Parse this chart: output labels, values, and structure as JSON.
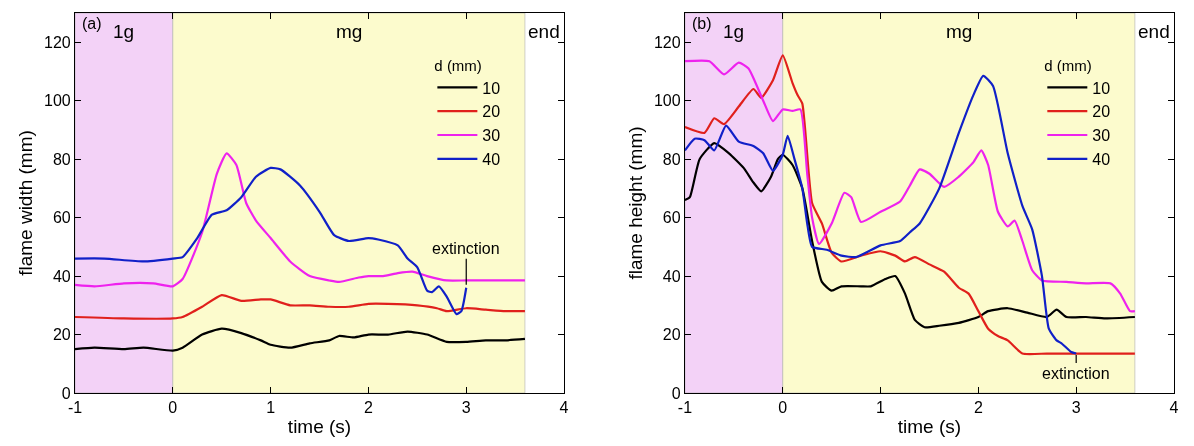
{
  "chart_data": [
    {
      "type": "line",
      "xlabel": "time (s)",
      "ylabel": "flame width (mm)",
      "legend_title": "d (mm)",
      "legend": "top right",
      "xlim": [
        -1,
        4
      ],
      "xticks": [
        -1,
        0,
        1,
        2,
        3,
        4
      ],
      "ylim": [
        0,
        130
      ],
      "yticks": [
        0,
        20,
        40,
        60,
        80,
        100,
        120
      ],
      "bands": [
        {
          "axis": "x",
          "from": -1,
          "to": 0,
          "label": "1g",
          "color": "#f3d2f7"
        },
        {
          "axis": "x",
          "from": 0,
          "to": 3.6,
          "label": "mg",
          "color": "#fcfbcd"
        }
      ],
      "annotations": [
        "(a)",
        "end",
        {
          "text": "extinction",
          "x": 3,
          "y": 37
        }
      ],
      "series": [
        {
          "name": "10",
          "color": "#000000",
          "x": [
            -1,
            -0.8,
            -0.5,
            -0.3,
            0,
            0.1,
            0.3,
            0.5,
            0.7,
            0.9,
            1.0,
            1.2,
            1.4,
            1.6,
            1.7,
            1.85,
            2.0,
            2.2,
            2.4,
            2.6,
            2.8,
            3.0,
            3.2,
            3.4,
            3.6
          ],
          "values": [
            15,
            15.5,
            15,
            15.5,
            14.5,
            15.5,
            20,
            22,
            20.5,
            18,
            16.5,
            15.5,
            17,
            18,
            19.5,
            19,
            20,
            20,
            21,
            20,
            17.5,
            17.5,
            18,
            18,
            18.5
          ]
        },
        {
          "name": "20",
          "color": "#e0201c",
          "x": [
            -1,
            -0.5,
            0,
            0.1,
            0.3,
            0.5,
            0.7,
            0.9,
            1.0,
            1.2,
            1.4,
            1.6,
            1.8,
            2.0,
            2.2,
            2.5,
            2.7,
            2.8,
            3.0,
            3.2,
            3.4,
            3.6
          ],
          "values": [
            26,
            25.5,
            25.5,
            26,
            29.5,
            33.5,
            31.5,
            32,
            32,
            30,
            30,
            29.5,
            29.5,
            30.5,
            30.5,
            30,
            29,
            28,
            29,
            28.5,
            28,
            28
          ]
        },
        {
          "name": "30",
          "color": "#ee22ee",
          "x": [
            -1,
            -0.8,
            -0.5,
            -0.2,
            0,
            0.1,
            0.3,
            0.45,
            0.55,
            0.65,
            0.75,
            0.85,
            1.0,
            1.2,
            1.4,
            1.6,
            1.7,
            1.9,
            2.0,
            2.15,
            2.3,
            2.45,
            2.6,
            2.8,
            3.0,
            3.2,
            3.6
          ],
          "values": [
            37,
            36.5,
            37.5,
            37.5,
            36.5,
            39,
            55,
            75,
            82,
            78,
            65,
            59,
            53,
            45,
            40,
            38.5,
            38,
            39.5,
            40,
            40,
            41,
            41.5,
            40,
            38.5,
            38.5,
            38.5,
            38.5
          ]
        },
        {
          "name": "40",
          "color": "#1020c8",
          "x": [
            -1,
            -0.7,
            -0.3,
            0,
            0.1,
            0.25,
            0.4,
            0.55,
            0.7,
            0.85,
            1.0,
            1.1,
            1.3,
            1.5,
            1.65,
            1.8,
            2.0,
            2.1,
            2.3,
            2.4,
            2.5,
            2.6,
            2.65,
            2.72,
            2.8,
            2.9,
            2.95,
            3.0
          ],
          "values": [
            46,
            46,
            45,
            46,
            46.5,
            53,
            61,
            62.5,
            67,
            74,
            77,
            76.5,
            71,
            62,
            54,
            52,
            53,
            52.5,
            50.5,
            46,
            43,
            35,
            34.5,
            36.5,
            33,
            27,
            28,
            36
          ]
        }
      ]
    },
    {
      "type": "line",
      "xlabel": "time (s)",
      "ylabel": "flame height (mm)",
      "legend_title": "d (mm)",
      "legend": "top right",
      "xlim": [
        -1,
        4
      ],
      "xticks": [
        -1,
        0,
        1,
        2,
        3,
        4
      ],
      "ylim": [
        0,
        130
      ],
      "yticks": [
        0,
        20,
        40,
        60,
        80,
        100,
        120
      ],
      "bands": [
        {
          "axis": "x",
          "from": -1,
          "to": 0,
          "label": "1g",
          "color": "#f3d2f7"
        },
        {
          "axis": "x",
          "from": 0,
          "to": 3.6,
          "label": "mg",
          "color": "#fcfbcd"
        }
      ],
      "annotations": [
        "(b)",
        "end",
        {
          "text": "extinction",
          "x": 3,
          "y": 13
        }
      ],
      "series": [
        {
          "name": "10",
          "color": "#000000",
          "x": [
            -1,
            -0.95,
            -0.85,
            -0.7,
            -0.55,
            -0.4,
            -0.3,
            -0.22,
            -0.12,
            -0.05,
            0,
            0.1,
            0.2,
            0.3,
            0.4,
            0.5,
            0.6,
            0.8,
            0.9,
            1.05,
            1.15,
            1.25,
            1.35,
            1.45,
            1.6,
            1.8,
            2.0,
            2.1,
            2.3,
            2.5,
            2.7,
            2.8,
            2.9,
            3.1,
            3.3,
            3.6
          ],
          "values": [
            66,
            67,
            80,
            85.5,
            82,
            77,
            72,
            69,
            74,
            80,
            81.5,
            78,
            70,
            52,
            38,
            35,
            36.5,
            36.5,
            36.5,
            39,
            40,
            34,
            25,
            22.5,
            23,
            24,
            26,
            28,
            29,
            27.5,
            26,
            28.5,
            26,
            26,
            25.5,
            26
          ]
        },
        {
          "name": "20",
          "color": "#e0201c",
          "x": [
            -1,
            -0.8,
            -0.7,
            -0.6,
            -0.45,
            -0.3,
            -0.22,
            -0.1,
            0,
            0.1,
            0.15,
            0.2,
            0.3,
            0.4,
            0.5,
            0.6,
            0.8,
            1.0,
            1.15,
            1.25,
            1.35,
            1.5,
            1.65,
            1.8,
            1.9,
            2.0,
            2.1,
            2.2,
            2.3,
            2.45,
            2.7,
            3.0,
            3.6
          ],
          "values": [
            91,
            89,
            94,
            92,
            98,
            104,
            101,
            107,
            115.5,
            106,
            102,
            99,
            65,
            58,
            48,
            45,
            47,
            48.5,
            47,
            45,
            46.5,
            44,
            41.5,
            36,
            34,
            28,
            22,
            19.5,
            18,
            13.5,
            13.5,
            13.5,
            13.5
          ]
        },
        {
          "name": "30",
          "color": "#ee22ee",
          "x": [
            -1,
            -0.75,
            -0.6,
            -0.45,
            -0.35,
            -0.2,
            -0.1,
            0,
            0.1,
            0.18,
            0.25,
            0.3,
            0.37,
            0.5,
            0.63,
            0.7,
            0.8,
            1.0,
            1.2,
            1.3,
            1.4,
            1.5,
            1.65,
            1.8,
            1.95,
            2.03,
            2.1,
            2.2,
            2.3,
            2.37,
            2.45,
            2.55,
            2.65,
            2.9,
            3.1,
            3.35,
            3.45,
            3.55,
            3.6
          ],
          "values": [
            113.5,
            113.5,
            109,
            113,
            111,
            100,
            93,
            97,
            96.5,
            97,
            75,
            60,
            51,
            58,
            68.5,
            67,
            58.5,
            62,
            65.5,
            71,
            76.5,
            75,
            70.5,
            74,
            79,
            83,
            78,
            62,
            57,
            59,
            52,
            42,
            38.5,
            38,
            37.5,
            37.5,
            34,
            28,
            28
          ]
        },
        {
          "name": "40",
          "color": "#1020c8",
          "x": [
            -1,
            -0.9,
            -0.8,
            -0.7,
            -0.58,
            -0.45,
            -0.3,
            -0.2,
            -0.1,
            0,
            0.05,
            0.12,
            0.2,
            0.25,
            0.3,
            0.45,
            0.6,
            0.75,
            1.0,
            1.2,
            1.3,
            1.4,
            1.6,
            1.8,
            1.95,
            2.05,
            2.15,
            2.3,
            2.45,
            2.55,
            2.65,
            2.72,
            2.8,
            2.85,
            2.95,
            3.0
          ],
          "values": [
            83,
            87,
            86.5,
            83,
            91.5,
            86,
            84.5,
            82,
            76,
            81.5,
            88,
            80,
            70,
            58,
            50,
            49,
            47,
            46.5,
            50.5,
            52,
            55,
            58,
            70,
            89,
            102,
            108.5,
            105,
            82,
            64,
            56,
            40,
            22,
            18,
            17,
            14,
            13.5
          ]
        }
      ]
    }
  ]
}
